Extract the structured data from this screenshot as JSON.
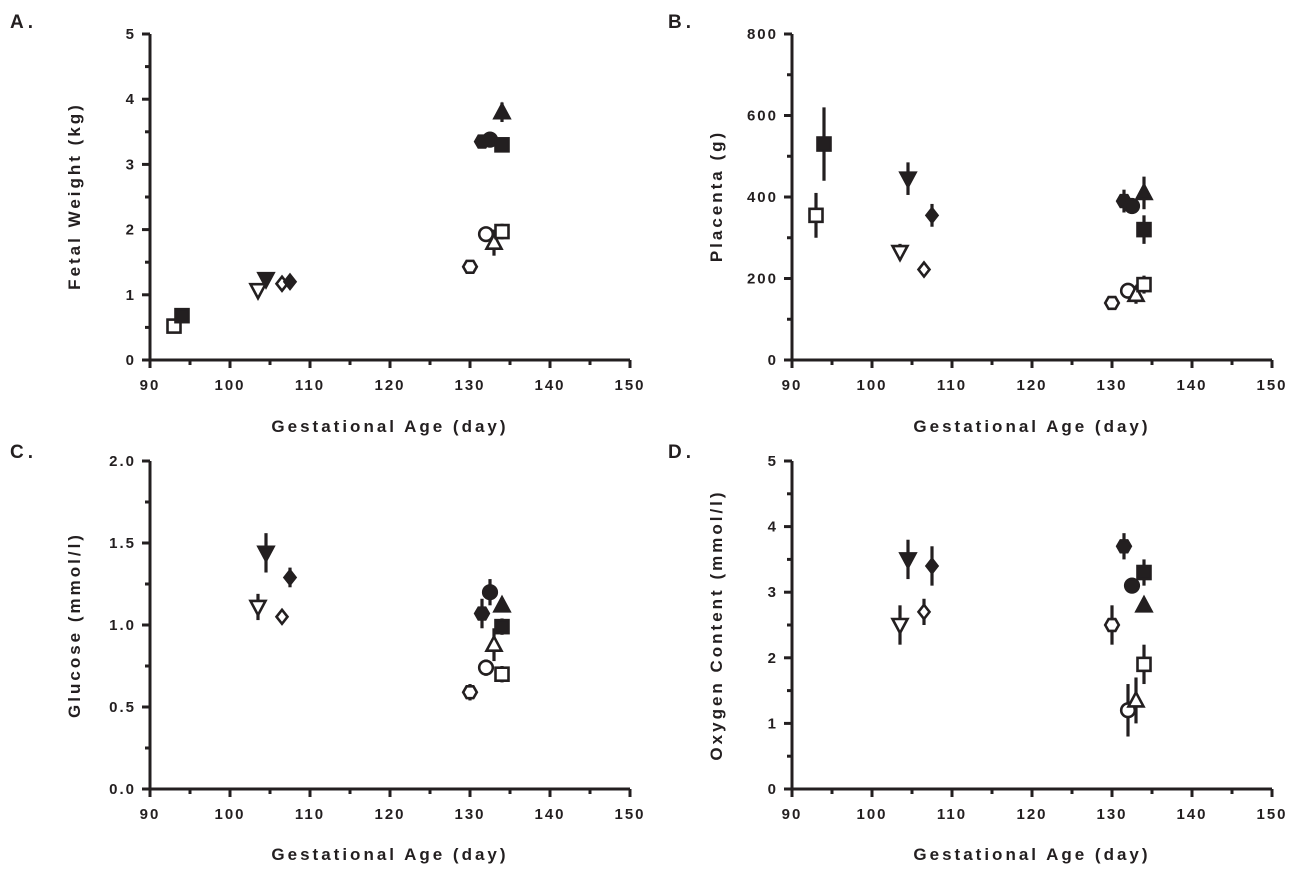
{
  "chart_data": [
    {
      "type": "scatter",
      "panel_label": "A.",
      "xlabel": "Gestational Age (day)",
      "ylabel": "Fetal Weight (kg)",
      "xlim": [
        90,
        150
      ],
      "ylim": [
        0,
        5
      ],
      "x_ticks": [
        "90",
        "100",
        "110",
        "120",
        "130",
        "140",
        "150"
      ],
      "y_ticks": [
        "0",
        "1",
        "2",
        "3",
        "4",
        "5"
      ],
      "points": [
        {
          "marker": "square",
          "filled": false,
          "x": 93,
          "y": 0.52,
          "err": 0
        },
        {
          "marker": "square",
          "filled": true,
          "x": 94,
          "y": 0.68,
          "err": 0
        },
        {
          "marker": "triangle-down",
          "filled": false,
          "x": 103.5,
          "y": 1.07,
          "err": 0
        },
        {
          "marker": "triangle-down",
          "filled": true,
          "x": 104.5,
          "y": 1.24,
          "err": 0
        },
        {
          "marker": "diamond",
          "filled": false,
          "x": 106.5,
          "y": 1.17,
          "err": 0
        },
        {
          "marker": "diamond",
          "filled": true,
          "x": 107.5,
          "y": 1.2,
          "err": 0
        },
        {
          "marker": "hexagon",
          "filled": false,
          "x": 130,
          "y": 1.43,
          "err": 0
        },
        {
          "marker": "hexagon",
          "filled": true,
          "x": 131.5,
          "y": 3.35,
          "err": 0.1
        },
        {
          "marker": "circle",
          "filled": false,
          "x": 132,
          "y": 1.93,
          "err": 0
        },
        {
          "marker": "circle",
          "filled": true,
          "x": 132.5,
          "y": 3.38,
          "err": 0.05
        },
        {
          "marker": "triangle-up",
          "filled": false,
          "x": 133,
          "y": 1.8,
          "err": 0.2
        },
        {
          "marker": "triangle-up",
          "filled": true,
          "x": 134,
          "y": 3.8,
          "err": 0.15
        },
        {
          "marker": "square",
          "filled": false,
          "x": 134,
          "y": 1.97,
          "err": 0.12
        },
        {
          "marker": "square",
          "filled": true,
          "x": 134,
          "y": 3.3,
          "err": 0.1
        }
      ]
    },
    {
      "type": "scatter",
      "panel_label": "B.",
      "xlabel": "Gestational Age (day)",
      "ylabel": "Placenta (g)",
      "xlim": [
        90,
        150
      ],
      "ylim": [
        0,
        800
      ],
      "x_ticks": [
        "90",
        "100",
        "110",
        "120",
        "130",
        "140",
        "150"
      ],
      "y_ticks": [
        "0",
        "200",
        "400",
        "600",
        "800"
      ],
      "points": [
        {
          "marker": "square",
          "filled": false,
          "x": 93,
          "y": 355,
          "err": 55
        },
        {
          "marker": "square",
          "filled": true,
          "x": 94,
          "y": 530,
          "err": 90
        },
        {
          "marker": "triangle-down",
          "filled": false,
          "x": 103.5,
          "y": 265,
          "err": 20
        },
        {
          "marker": "triangle-down",
          "filled": true,
          "x": 104.5,
          "y": 445,
          "err": 40
        },
        {
          "marker": "diamond",
          "filled": false,
          "x": 106.5,
          "y": 222,
          "err": 15
        },
        {
          "marker": "diamond",
          "filled": true,
          "x": 107.5,
          "y": 355,
          "err": 28
        },
        {
          "marker": "hexagon",
          "filled": false,
          "x": 130,
          "y": 140,
          "err": 10
        },
        {
          "marker": "hexagon",
          "filled": true,
          "x": 131.5,
          "y": 390,
          "err": 28
        },
        {
          "marker": "circle",
          "filled": false,
          "x": 132,
          "y": 170,
          "err": 12
        },
        {
          "marker": "circle",
          "filled": true,
          "x": 132.5,
          "y": 378,
          "err": 15
        },
        {
          "marker": "triangle-up",
          "filled": false,
          "x": 133,
          "y": 160,
          "err": 22
        },
        {
          "marker": "triangle-up",
          "filled": true,
          "x": 134,
          "y": 410,
          "err": 40
        },
        {
          "marker": "square",
          "filled": false,
          "x": 134,
          "y": 185,
          "err": 22
        },
        {
          "marker": "square",
          "filled": true,
          "x": 134,
          "y": 320,
          "err": 35
        }
      ]
    },
    {
      "type": "scatter",
      "panel_label": "C.",
      "xlabel": "Gestational Age (day)",
      "ylabel": "Glucose (mmol/l)",
      "xlim": [
        90,
        150
      ],
      "ylim": [
        0,
        2
      ],
      "x_ticks": [
        "90",
        "100",
        "110",
        "120",
        "130",
        "140",
        "150"
      ],
      "y_ticks": [
        "0.0",
        "0.5",
        "1.0",
        "1.5",
        "2.0"
      ],
      "points": [
        {
          "marker": "triangle-down",
          "filled": false,
          "x": 103.5,
          "y": 1.11,
          "err": 0.08
        },
        {
          "marker": "triangle-down",
          "filled": true,
          "x": 104.5,
          "y": 1.44,
          "err": 0.12
        },
        {
          "marker": "diamond",
          "filled": false,
          "x": 106.5,
          "y": 1.05,
          "err": 0.02
        },
        {
          "marker": "diamond",
          "filled": true,
          "x": 107.5,
          "y": 1.29,
          "err": 0.06
        },
        {
          "marker": "hexagon",
          "filled": false,
          "x": 130,
          "y": 0.59,
          "err": 0.05
        },
        {
          "marker": "hexagon",
          "filled": true,
          "x": 131.5,
          "y": 1.07,
          "err": 0.09
        },
        {
          "marker": "circle",
          "filled": false,
          "x": 132,
          "y": 0.74,
          "err": 0.05
        },
        {
          "marker": "circle",
          "filled": true,
          "x": 132.5,
          "y": 1.2,
          "err": 0.08
        },
        {
          "marker": "triangle-up",
          "filled": false,
          "x": 133,
          "y": 0.88,
          "err": 0.1
        },
        {
          "marker": "triangle-up",
          "filled": true,
          "x": 134,
          "y": 1.12,
          "err": 0.03
        },
        {
          "marker": "square",
          "filled": false,
          "x": 134,
          "y": 0.7,
          "err": 0.05
        },
        {
          "marker": "square",
          "filled": true,
          "x": 134,
          "y": 0.99,
          "err": 0.05
        }
      ]
    },
    {
      "type": "scatter",
      "panel_label": "D.",
      "xlabel": "Gestational Age (day)",
      "ylabel": "Oxygen Content (mmol/l)",
      "xlim": [
        90,
        150
      ],
      "ylim": [
        0,
        5
      ],
      "x_ticks": [
        "90",
        "100",
        "110",
        "120",
        "130",
        "140",
        "150"
      ],
      "y_ticks": [
        "0",
        "1",
        "2",
        "3",
        "4",
        "5"
      ],
      "points": [
        {
          "marker": "triangle-down",
          "filled": false,
          "x": 103.5,
          "y": 2.5,
          "err": 0.3
        },
        {
          "marker": "triangle-down",
          "filled": true,
          "x": 104.5,
          "y": 3.5,
          "err": 0.3
        },
        {
          "marker": "diamond",
          "filled": false,
          "x": 106.5,
          "y": 2.7,
          "err": 0.2
        },
        {
          "marker": "diamond",
          "filled": true,
          "x": 107.5,
          "y": 3.4,
          "err": 0.3
        },
        {
          "marker": "hexagon",
          "filled": false,
          "x": 130,
          "y": 2.5,
          "err": 0.3
        },
        {
          "marker": "hexagon",
          "filled": true,
          "x": 131.5,
          "y": 3.7,
          "err": 0.2
        },
        {
          "marker": "circle",
          "filled": false,
          "x": 132,
          "y": 1.2,
          "err": 0.4
        },
        {
          "marker": "circle",
          "filled": true,
          "x": 132.5,
          "y": 3.1,
          "err": 0
        },
        {
          "marker": "triangle-up",
          "filled": false,
          "x": 133,
          "y": 1.35,
          "err": 0.35
        },
        {
          "marker": "triangle-up",
          "filled": true,
          "x": 134,
          "y": 2.8,
          "err": 0
        },
        {
          "marker": "square",
          "filled": false,
          "x": 134,
          "y": 1.9,
          "err": 0.3
        },
        {
          "marker": "square",
          "filled": true,
          "x": 134,
          "y": 3.3,
          "err": 0.2
        }
      ]
    }
  ]
}
